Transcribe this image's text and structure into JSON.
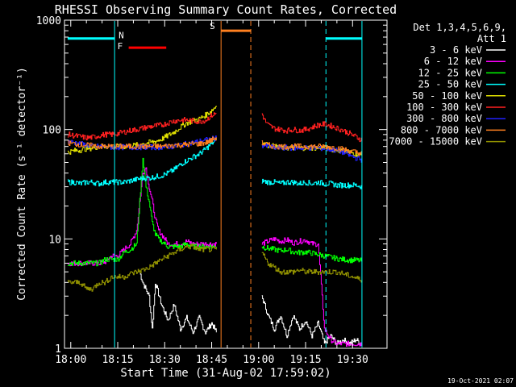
{
  "chart_data": {
    "type": "line",
    "title": "RHESSI Observing Summary Count Rates, Corrected",
    "xlabel": "Start Time (31-Aug-02 17:59:02)",
    "ylabel": "Corrected Count Rate (s⁻¹ detector⁻¹)",
    "yscale": "log",
    "ylim": [
      1,
      1000
    ],
    "xlim": [
      -1,
      102
    ],
    "x_unit": "minutes since 17:59:02",
    "x_ticks": [
      {
        "v": 1,
        "label": "18:00"
      },
      {
        "v": 16,
        "label": "18:15"
      },
      {
        "v": 31,
        "label": "18:30"
      },
      {
        "v": 46,
        "label": "18:45"
      },
      {
        "v": 61,
        "label": "19:00"
      },
      {
        "v": 76,
        "label": "19:15"
      },
      {
        "v": 91,
        "label": "19:30"
      }
    ],
    "y_ticks": [
      {
        "v": 1,
        "label": "1"
      },
      {
        "v": 10,
        "label": "10"
      },
      {
        "v": 100,
        "label": "100"
      },
      {
        "v": 1000,
        "label": "1000"
      }
    ],
    "legend_header": [
      "Det 1,3,4,5,6,9,",
      "Att 1"
    ],
    "legend_placement": "right",
    "timestamp": "19-Oct-2021 02:07",
    "series": [
      {
        "name": "3 - 6 keV",
        "color": "#ffffff",
        "segments": [
          {
            "x": [
              23,
              24,
              26,
              27,
              28,
              30,
              32,
              34,
              36,
              38,
              40,
              42,
              44,
              46,
              47.5
            ],
            "y": [
              5,
              4,
              3,
              1.5,
              4,
              2.5,
              1.8,
              2.5,
              1.5,
              1.9,
              1.4,
              1.9,
              1.4,
              1.7,
              1.4
            ]
          },
          {
            "x": [
              62,
              64,
              66,
              68,
              70,
              72,
              74,
              76,
              78,
              80,
              82,
              84,
              86,
              88,
              90,
              92,
              94
            ],
            "y": [
              3,
              2,
              1.5,
              2,
              1.3,
              2,
              1.5,
              1.8,
              1.3,
              1.7,
              1.1,
              1.3,
              1.1,
              1.2,
              1.1,
              1.2,
              1.1
            ]
          }
        ]
      },
      {
        "name": "6 - 12 keV",
        "color": "#ff00ff",
        "segments": [
          {
            "x": [
              0,
              2,
              4,
              6,
              8,
              10,
              12,
              14,
              16,
              18,
              20,
              22,
              24,
              25,
              26,
              27,
              28,
              29,
              30,
              31,
              32,
              34,
              36,
              38,
              40,
              42,
              44,
              46,
              47.5
            ],
            "y": [
              6,
              6,
              6,
              6,
              6,
              6,
              6.2,
              7,
              7,
              8,
              9,
              12,
              40,
              45,
              30,
              22,
              15,
              12,
              11,
              10,
              9,
              9,
              9,
              9.5,
              9,
              9,
              9,
              9,
              9
            ]
          },
          {
            "x": [
              62,
              64,
              66,
              68,
              70,
              72,
              74,
              76,
              78,
              80,
              82,
              84,
              86,
              88,
              90,
              92,
              94
            ],
            "y": [
              9,
              9.5,
              10,
              9.5,
              9.8,
              9.2,
              9.5,
              9.8,
              9,
              9,
              1.5,
              1.2,
              1.1,
              1.1,
              1.1,
              1.1,
              1.1
            ]
          }
        ]
      },
      {
        "name": "12 - 25 keV",
        "color": "#00ff00",
        "segments": [
          {
            "x": [
              0,
              2,
              4,
              6,
              8,
              10,
              12,
              14,
              16,
              18,
              20,
              22,
              24,
              25,
              26,
              27,
              28,
              29,
              30,
              31,
              32,
              34,
              36,
              38,
              40,
              42,
              44,
              46,
              47.5
            ],
            "y": [
              6,
              6,
              6,
              6,
              6,
              6,
              6.5,
              6.5,
              6.5,
              7.5,
              8,
              9,
              55,
              30,
              22,
              14,
              11,
              10,
              9.5,
              9,
              8.5,
              8.5,
              8.5,
              9,
              8.5,
              8.5,
              8.5,
              8.5,
              8.5
            ]
          },
          {
            "x": [
              62,
              64,
              66,
              68,
              70,
              72,
              74,
              76,
              78,
              80,
              82,
              84,
              86,
              88,
              90,
              92,
              94
            ],
            "y": [
              8.5,
              8.2,
              8,
              7.8,
              8,
              7.6,
              7.5,
              7.6,
              7.4,
              7.2,
              7,
              6.8,
              6.6,
              6.5,
              6.4,
              6.4,
              6.3
            ]
          }
        ]
      },
      {
        "name": "25 - 50 keV",
        "color": "#00ffff",
        "segments": [
          {
            "x": [
              0,
              2,
              4,
              6,
              8,
              10,
              12,
              14,
              16,
              18,
              20,
              22,
              24,
              26,
              28,
              30,
              32,
              34,
              36,
              38,
              40,
              42,
              44,
              46,
              47.5
            ],
            "y": [
              33,
              33,
              32,
              33,
              33,
              32,
              33,
              33,
              33,
              33,
              34,
              35,
              36,
              36,
              37,
              38,
              40,
              43,
              48,
              52,
              56,
              60,
              66,
              75,
              80
            ]
          },
          {
            "x": [
              62,
              64,
              66,
              68,
              70,
              72,
              74,
              76,
              78,
              80,
              82,
              84,
              86,
              88,
              90,
              92,
              94
            ],
            "y": [
              34,
              33,
              33,
              32,
              33,
              33,
              32,
              33,
              32,
              33,
              32,
              32,
              31,
              31,
              31,
              31,
              30
            ]
          }
        ]
      },
      {
        "name": "50 - 100 keV",
        "color": "#e0e000",
        "segments": [
          {
            "x": [
              0,
              2,
              4,
              6,
              8,
              10,
              12,
              14,
              16,
              18,
              20,
              22,
              24,
              26,
              28,
              30,
              32,
              34,
              36,
              38,
              40,
              42,
              44,
              46,
              47.5
            ],
            "y": [
              62,
              64,
              65,
              67,
              68,
              70,
              70,
              70,
              70,
              70,
              71,
              72,
              74,
              76,
              78,
              82,
              88,
              95,
              105,
              115,
              120,
              125,
              135,
              150,
              165
            ]
          },
          {
            "x": [
              62,
              64,
              66,
              68,
              70,
              72,
              74,
              76,
              78,
              80,
              82,
              84,
              86,
              88,
              90,
              92,
              94
            ],
            "y": [
              75,
              72,
              70,
              68,
              68,
              68,
              68,
              68,
              68,
              68,
              68,
              66,
              65,
              63,
              62,
              60,
              58
            ]
          }
        ]
      },
      {
        "name": "100 - 300 keV",
        "color": "#ff2020",
        "segments": [
          {
            "x": [
              0,
              2,
              4,
              6,
              8,
              10,
              12,
              14,
              16,
              18,
              20,
              22,
              24,
              26,
              28,
              30,
              32,
              34,
              36,
              38,
              40,
              42,
              44,
              46,
              47.5
            ],
            "y": [
              90,
              88,
              86,
              84,
              85,
              88,
              90,
              90,
              92,
              95,
              98,
              100,
              103,
              106,
              108,
              110,
              115,
              120,
              122,
              122,
              120,
              118,
              122,
              135,
              140
            ]
          },
          {
            "x": [
              62,
              63,
              64,
              66,
              68,
              70,
              72,
              74,
              76,
              78,
              80,
              82,
              84,
              86,
              88,
              90,
              92,
              94
            ],
            "y": [
              140,
              120,
              110,
              102,
              100,
              98,
              100,
              98,
              100,
              105,
              110,
              112,
              108,
              103,
              98,
              92,
              86,
              80
            ]
          }
        ]
      },
      {
        "name": "300 - 800 keV",
        "color": "#2020ff",
        "segments": [
          {
            "x": [
              0,
              2,
              4,
              6,
              8,
              10,
              12,
              14,
              16,
              18,
              20,
              22,
              24,
              26,
              28,
              30,
              32,
              34,
              36,
              38,
              40,
              42,
              44,
              46,
              47.5
            ],
            "y": [
              78,
              76,
              74,
              72,
              70,
              70,
              70,
              69,
              69,
              69,
              69,
              69,
              69,
              69,
              69,
              69,
              70,
              70,
              72,
              74,
              76,
              78,
              80,
              82,
              84
            ]
          },
          {
            "x": [
              62,
              64,
              66,
              68,
              70,
              72,
              74,
              76,
              78,
              80,
              82,
              84,
              86,
              88,
              90,
              92,
              94
            ],
            "y": [
              72,
              70,
              68,
              68,
              68,
              68,
              68,
              68,
              68,
              68,
              67,
              66,
              64,
              62,
              58,
              55,
              53
            ]
          }
        ]
      },
      {
        "name": "800 - 7000 keV",
        "color": "#ff8020",
        "segments": [
          {
            "x": [
              0,
              2,
              4,
              6,
              8,
              10,
              12,
              14,
              16,
              18,
              20,
              22,
              24,
              26,
              28,
              30,
              32,
              34,
              36,
              38,
              40,
              42,
              44,
              46,
              47.5
            ],
            "y": [
              75,
              74,
              73,
              72,
              71,
              70,
              70,
              70,
              70,
              70,
              70,
              70,
              70,
              70,
              70,
              70,
              71,
              72,
              72,
              73,
              74,
              74,
              76,
              80,
              85
            ]
          },
          {
            "x": [
              62,
              64,
              66,
              68,
              70,
              72,
              74,
              76,
              78,
              80,
              82,
              84,
              86,
              88,
              90,
              92,
              94
            ],
            "y": [
              75,
              72,
              70,
              70,
              70,
              70,
              70,
              70,
              70,
              70,
              70,
              69,
              68,
              66,
              64,
              62,
              60
            ]
          }
        ]
      },
      {
        "name": "7000 - 15000 keV",
        "color": "#8f8f00",
        "segments": [
          {
            "x": [
              0,
              2,
              4,
              6,
              8,
              10,
              12,
              14,
              16,
              18,
              20,
              22,
              24,
              26,
              28,
              30,
              32,
              34,
              36,
              38,
              40,
              42,
              44,
              46,
              47.5
            ],
            "y": [
              4,
              4,
              4,
              3.5,
              3.5,
              4,
              4,
              4.5,
              4.5,
              4.5,
              4.8,
              5,
              5.2,
              5.5,
              6,
              6.5,
              7,
              7.5,
              8,
              8.5,
              8.5,
              8,
              8,
              8,
              8
            ]
          },
          {
            "x": [
              62,
              64,
              66,
              68,
              70,
              72,
              74,
              76,
              78,
              80,
              82,
              84,
              86,
              88,
              90,
              92,
              94
            ],
            "y": [
              7.5,
              6,
              5.5,
              5,
              5,
              5,
              5.2,
              5,
              5,
              5,
              5,
              5,
              5,
              4.8,
              4.6,
              4.4,
              4.2
            ]
          }
        ]
      }
    ],
    "annotations": [
      {
        "label": "N",
        "color": "#00ffff",
        "bars": [
          [
            0,
            15
          ],
          [
            82.5,
            94
          ]
        ],
        "y": 680,
        "vlines": [
          15,
          82.5,
          94
        ]
      },
      {
        "label": "F",
        "color": "#ff0000",
        "bars": [
          [
            19.5,
            31.5
          ]
        ],
        "y": 560,
        "vlines": []
      },
      {
        "label": "S",
        "color": "#ff8020",
        "bars": [
          [
            49,
            58.5
          ]
        ],
        "y": 800,
        "vlines": [
          49,
          58.5
        ]
      }
    ]
  }
}
